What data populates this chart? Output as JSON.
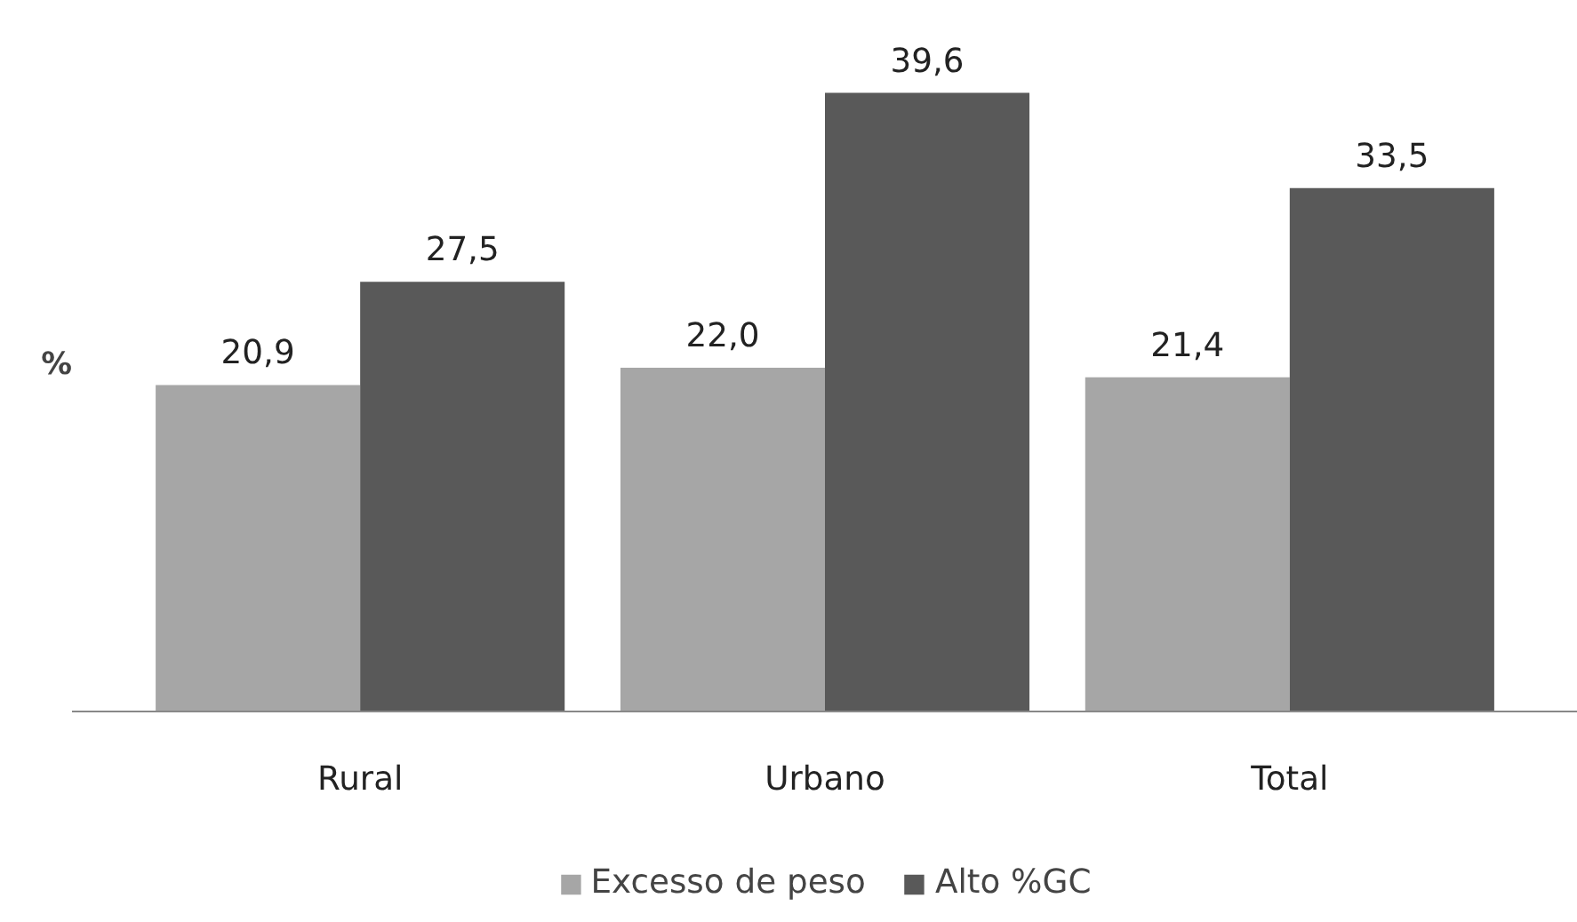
{
  "chart_data": {
    "type": "bar",
    "ylabel": "%",
    "categories": [
      "Rural",
      "Urbano",
      "Total"
    ],
    "series": [
      {
        "name": "Excesso de peso",
        "color": "#a6a6a6",
        "values": [
          20.9,
          22.0,
          21.4
        ],
        "value_labels": [
          "20,9",
          "22,0",
          "21,4"
        ]
      },
      {
        "name": "Alto %GC",
        "color": "#595959",
        "values": [
          27.5,
          39.6,
          33.5
        ],
        "value_labels": [
          "27,5",
          "39,6",
          "33,5"
        ]
      }
    ],
    "grid": false,
    "legend": "bottom"
  }
}
